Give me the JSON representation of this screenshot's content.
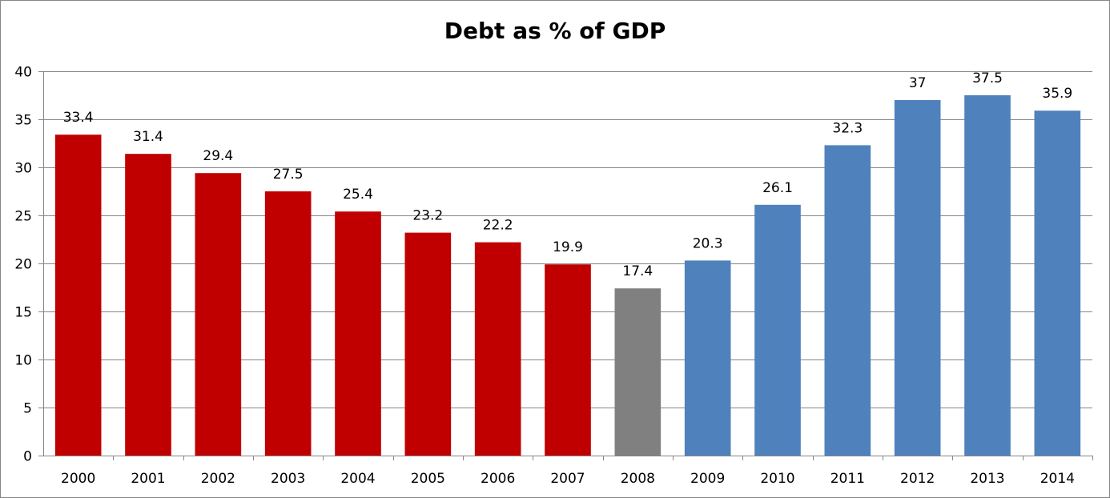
{
  "chart_data": {
    "type": "bar",
    "title": "Debt as % of GDP",
    "xlabel": "",
    "ylabel": "",
    "ylim": [
      0,
      40
    ],
    "yticks": [
      0,
      5,
      10,
      15,
      20,
      25,
      30,
      35,
      40
    ],
    "grid": true,
    "legend": "none",
    "categories": [
      "2000",
      "2001",
      "2002",
      "2003",
      "2004",
      "2005",
      "2006",
      "2007",
      "2008",
      "2009",
      "2010",
      "2011",
      "2012",
      "2013",
      "2014"
    ],
    "values": [
      33.4,
      31.4,
      29.4,
      27.5,
      25.4,
      23.2,
      22.2,
      19.9,
      17.4,
      20.3,
      26.1,
      32.3,
      37,
      37.5,
      35.9
    ],
    "data_labels": [
      "33.4",
      "31.4",
      "29.4",
      "27.5",
      "25.4",
      "23.2",
      "22.2",
      "19.9",
      "17.4",
      "20.3",
      "26.1",
      "32.3",
      "37",
      "37.5",
      "35.9"
    ],
    "bar_colors": [
      "#C00000",
      "#C00000",
      "#C00000",
      "#C00000",
      "#C00000",
      "#C00000",
      "#C00000",
      "#C00000",
      "#808080",
      "#4F81BD",
      "#4F81BD",
      "#4F81BD",
      "#4F81BD",
      "#4F81BD",
      "#4F81BD"
    ],
    "gridline_color": "#868686",
    "axis_color": "#868686"
  }
}
